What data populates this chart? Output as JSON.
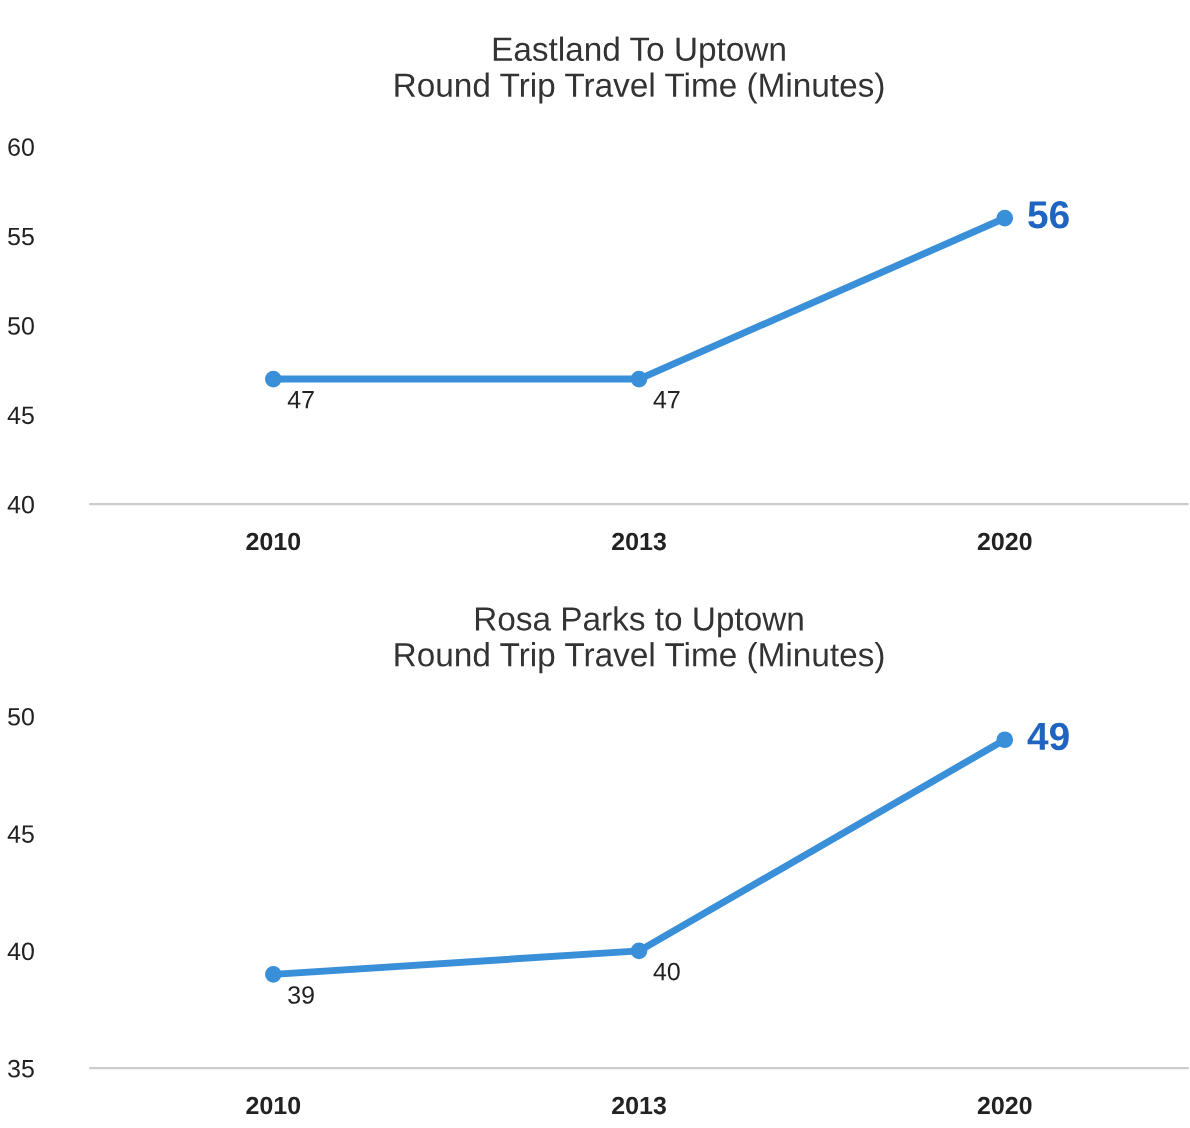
{
  "chart_data": [
    {
      "type": "line",
      "title": "Eastland To Uptown\nRound Trip Travel Time (Minutes)",
      "categories": [
        "2010",
        "2013",
        "2020"
      ],
      "series": [
        {
          "color": "#3a8fd9",
          "values": [
            47,
            47,
            56
          ]
        }
      ],
      "ylim": [
        40,
        60
      ],
      "yticks": [
        40,
        45,
        50,
        55,
        60
      ],
      "data_labels": true,
      "marker": "circle",
      "grid": false,
      "legend": false
    },
    {
      "type": "line",
      "title": "Rosa Parks to Uptown\nRound Trip Travel Time (Minutes)",
      "categories": [
        "2010",
        "2013",
        "2020"
      ],
      "series": [
        {
          "color": "#3a8fd9",
          "values": [
            39,
            40,
            49
          ]
        }
      ],
      "ylim": [
        35,
        50
      ],
      "yticks": [
        35,
        40,
        45,
        50
      ],
      "data_labels": true,
      "marker": "circle",
      "grid": false,
      "legend": false
    }
  ]
}
